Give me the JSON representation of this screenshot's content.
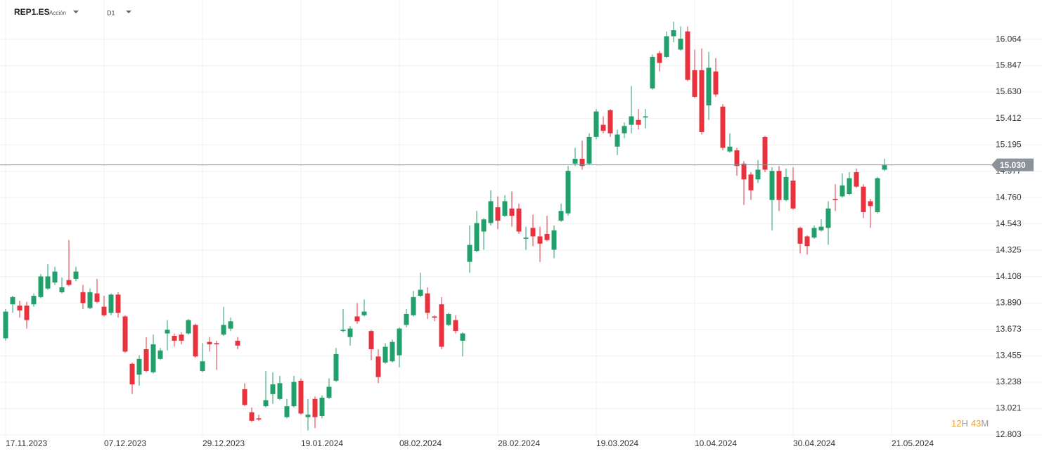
{
  "header": {
    "symbol": "REP1.ES",
    "asset_type": "Acción",
    "timeframe": "D1"
  },
  "countdown": [
    "12",
    "H",
    "43",
    "M"
  ],
  "chart_data": {
    "type": "candlestick",
    "up_color": "#22a06b",
    "down_color": "#e8333f",
    "grid": true,
    "ylim": [
      12.786,
      16.273
    ],
    "yticks": [
      16.064,
      15.847,
      {
        "value": 15.63,
        "label": "15.630"
      },
      15.412,
      15.195,
      14.977,
      {
        "value": 14.76,
        "label": "14.760"
      },
      14.543,
      14.325,
      14.108,
      {
        "value": 13.89,
        "label": "13.890"
      },
      13.673,
      13.455,
      13.238,
      13.021,
      12.803
    ],
    "last_price": {
      "value": 15.03,
      "label": "15.030"
    },
    "categories": [
      "17.11.2023",
      null,
      null,
      null,
      null,
      null,
      null,
      null,
      null,
      null,
      null,
      null,
      null,
      null,
      "07.12.2023",
      null,
      null,
      null,
      null,
      null,
      null,
      null,
      null,
      null,
      null,
      null,
      null,
      null,
      "29.12.2023",
      null,
      null,
      null,
      null,
      null,
      null,
      null,
      null,
      null,
      null,
      null,
      null,
      null,
      "19.01.2024",
      null,
      null,
      null,
      null,
      null,
      null,
      null,
      null,
      null,
      null,
      null,
      null,
      null,
      "08.02.2024",
      null,
      null,
      null,
      null,
      null,
      null,
      null,
      null,
      null,
      null,
      null,
      null,
      null,
      "28.02.2024",
      null,
      null,
      null,
      null,
      null,
      null,
      null,
      null,
      null,
      null,
      null,
      null,
      null,
      "19.03.2024",
      null,
      null,
      null,
      null,
      null,
      null,
      null,
      null,
      null,
      null,
      null,
      null,
      null,
      "10.04.2024",
      null,
      null,
      null,
      null,
      null,
      null,
      null,
      null,
      null,
      null,
      null,
      null,
      null,
      "30.04.2024",
      null,
      null,
      null,
      null,
      null,
      null,
      null,
      null,
      null,
      null,
      null,
      null,
      null,
      "21.05.2024"
    ],
    "open": [
      13.6,
      13.88,
      13.87,
      13.87,
      13.88,
      13.94,
      14.01,
      14.06,
      13.98,
      14.08,
      14.09,
      13.98,
      13.85,
      13.97,
      13.86,
      13.81,
      13.96,
      13.78,
      13.39,
      13.3,
      13.51,
      13.32,
      13.43,
      13.64,
      13.62,
      13.63,
      13.64,
      13.71,
      13.33,
      13.57,
      13.56,
      13.63,
      13.68,
      13.58,
      13.18,
      12.99,
      12.94,
      13.04,
      13.14,
      13.1,
      12.95,
      13.04,
      13.25,
      12.95,
      13.1,
      12.96,
      13.11,
      13.25,
      13.66,
      13.61,
      13.78,
      13.79,
      13.66,
      13.45,
      13.4,
      13.41,
      13.46,
      13.71,
      13.79,
      13.95,
      13.97,
      13.78,
      13.88,
      13.71,
      13.75,
      13.58,
      14.23,
      14.32,
      14.48,
      14.55,
      14.68,
      14.61,
      14.67,
      14.67,
      14.42,
      14.51,
      14.44,
      14.46,
      14.33,
      14.57,
      14.63,
      15.04,
      15.08,
      15.04,
      15.26,
      15.36,
      15.48,
      15.18,
      15.29,
      15.36,
      15.4,
      15.42,
      15.66,
      15.95,
      15.92,
      16.09,
      15.98,
      16.13,
      15.81,
      15.81,
      15.52,
      15.8,
      15.51,
      15.14,
      15.15,
      15.04,
      14.95,
      14.91,
      15.26,
      14.74,
      14.98,
      14.74,
      14.9,
      14.51,
      14.44,
      14.43,
      14.49,
      14.51,
      14.75,
      14.77,
      14.79,
      14.97,
      14.85,
      14.73,
      14.64,
      14.99,
      null
    ],
    "high": [
      13.84,
      13.95,
      13.91,
      13.9,
      13.97,
      14.13,
      14.21,
      14.19,
      14.1,
      14.41,
      14.19,
      14.04,
      14.01,
      14.09,
      13.95,
      13.97,
      13.98,
      13.79,
      13.4,
      13.46,
      13.61,
      13.63,
      13.52,
      13.75,
      13.64,
      13.65,
      13.76,
      13.72,
      13.56,
      13.61,
      13.58,
      13.86,
      13.77,
      13.61,
      13.23,
      13.03,
      12.97,
      13.33,
      13.32,
      13.29,
      13.1,
      13.29,
      13.27,
      13.1,
      13.12,
      13.13,
      13.27,
      13.52,
      13.84,
      13.7,
      13.89,
      13.92,
      13.67,
      13.51,
      13.56,
      13.59,
      13.69,
      13.84,
      13.99,
      14.14,
      14.02,
      13.79,
      13.94,
      13.81,
      13.79,
      13.65,
      14.53,
      14.65,
      14.59,
      14.82,
      14.77,
      14.78,
      14.81,
      14.71,
      14.52,
      14.62,
      14.52,
      14.61,
      14.53,
      14.71,
      15.02,
      15.17,
      15.23,
      15.29,
      15.49,
      15.43,
      15.49,
      15.32,
      15.38,
      15.68,
      15.49,
      15.49,
      15.94,
      15.97,
      16.13,
      16.21,
      16.17,
      16.17,
      15.98,
      15.99,
      15.96,
      15.91,
      15.53,
      15.29,
      15.17,
      15.06,
      14.97,
      15.07,
      15.27,
      15.01,
      15.02,
      15.0,
      15.01,
      14.52,
      14.45,
      14.53,
      14.58,
      14.73,
      14.87,
      14.96,
      14.97,
      15.0,
      14.87,
      14.75,
      14.93,
      15.08,
      null
    ],
    "low": [
      13.58,
      13.81,
      13.77,
      13.68,
      13.86,
      13.93,
      14.0,
      14.04,
      13.97,
      14.03,
      14.07,
      13.84,
      13.84,
      13.89,
      13.78,
      13.79,
      13.77,
      13.48,
      13.14,
      13.21,
      13.32,
      13.31,
      13.42,
      13.5,
      13.53,
      13.55,
      13.63,
      13.44,
      13.32,
      13.49,
      13.34,
      13.62,
      13.66,
      13.51,
      13.04,
      12.91,
      12.92,
      13.03,
      13.06,
      13.09,
      12.94,
      13.03,
      12.97,
      12.84,
      12.86,
      12.94,
      13.1,
      13.24,
      13.65,
      13.54,
      13.72,
      13.78,
      13.42,
      13.23,
      13.39,
      13.4,
      13.36,
      13.69,
      13.78,
      13.94,
      13.76,
      13.74,
      13.51,
      13.7,
      13.64,
      13.45,
      14.14,
      14.31,
      14.33,
      14.53,
      14.5,
      14.6,
      14.52,
      14.46,
      14.33,
      14.36,
      14.23,
      14.4,
      14.26,
      14.56,
      14.61,
      15.02,
      14.99,
      15.03,
      15.24,
      15.29,
      15.26,
      15.11,
      15.25,
      15.29,
      15.32,
      15.33,
      15.65,
      15.8,
      15.91,
      16.04,
      15.97,
      15.72,
      15.58,
      15.28,
      15.4,
      15.59,
      15.15,
      15.13,
      14.94,
      14.7,
      14.74,
      14.88,
      14.97,
      14.49,
      14.65,
      14.73,
      14.66,
      14.3,
      14.29,
      14.42,
      14.48,
      14.37,
      14.65,
      14.76,
      14.78,
      14.84,
      14.59,
      14.51,
      14.63,
      14.98,
      null
    ],
    "close": [
      13.82,
      13.94,
      13.83,
      13.75,
      13.95,
      14.11,
      14.11,
      14.15,
      14.02,
      14.04,
      14.15,
      13.89,
      13.98,
      13.9,
      13.79,
      13.96,
      13.81,
      13.49,
      13.22,
      13.43,
      13.33,
      13.55,
      13.5,
      13.67,
      13.58,
      13.58,
      13.75,
      13.45,
      13.41,
      13.55,
      13.55,
      13.71,
      13.74,
      13.54,
      13.05,
      12.92,
      12.93,
      13.09,
      13.22,
      13.23,
      13.04,
      13.24,
      12.98,
      12.97,
      12.95,
      13.11,
      13.2,
      13.47,
      13.67,
      13.68,
      13.74,
      13.82,
      13.51,
      13.28,
      13.53,
      13.57,
      13.68,
      13.8,
      13.94,
      14.0,
      13.81,
      13.77,
      13.53,
      13.8,
      13.66,
      13.64,
      14.37,
      14.55,
      14.58,
      14.73,
      14.57,
      14.73,
      14.61,
      14.48,
      14.43,
      14.44,
      14.38,
      14.41,
      14.49,
      14.65,
      14.98,
      15.08,
      15.02,
      15.26,
      15.47,
      15.31,
      15.29,
      15.28,
      15.35,
      15.43,
      15.36,
      15.43,
      15.92,
      15.87,
      16.09,
      16.14,
      16.07,
      15.73,
      15.59,
      15.3,
      15.83,
      15.61,
      15.17,
      15.18,
      15.02,
      14.91,
      14.82,
      14.99,
      14.99,
      14.98,
      14.74,
      14.93,
      14.67,
      14.38,
      14.36,
      14.51,
      14.52,
      14.67,
      14.74,
      14.86,
      14.92,
      14.85,
      14.64,
      14.69,
      14.92,
      15.03,
      null
    ]
  }
}
